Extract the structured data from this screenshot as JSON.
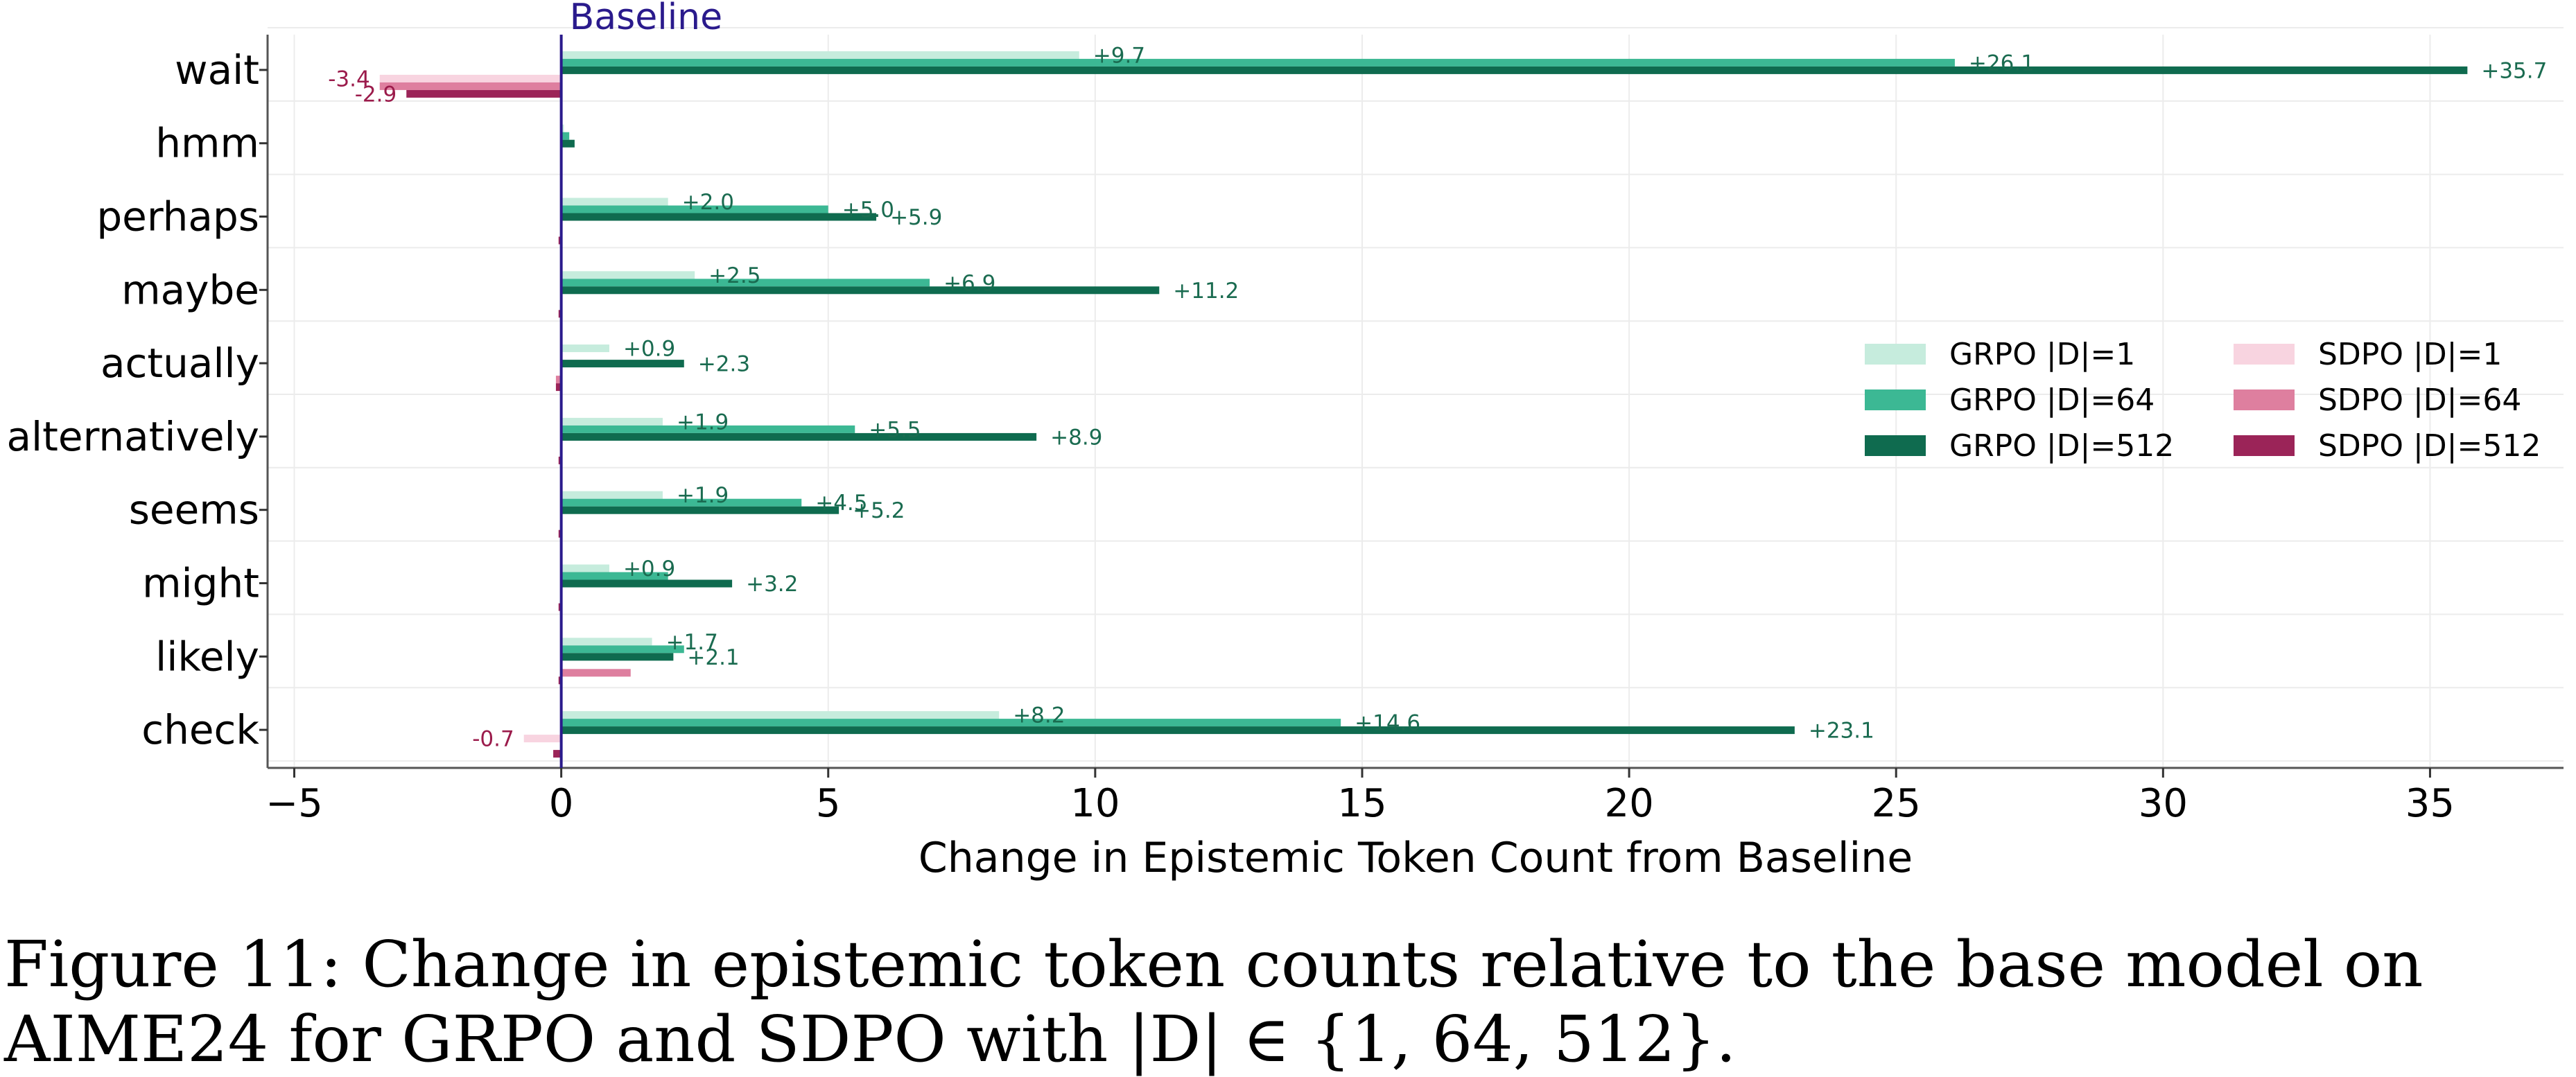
{
  "chart_data": {
    "type": "bar",
    "orientation": "horizontal",
    "categories": [
      "wait",
      "hmm",
      "perhaps",
      "maybe",
      "actually",
      "alternatively",
      "seems",
      "might",
      "likely",
      "check"
    ],
    "xlabel": "Change in Epistemic Token Count from Baseline",
    "xlim": [
      -5.5,
      37.5
    ],
    "xticks": [
      -5,
      0,
      5,
      10,
      15,
      20,
      25,
      30,
      35
    ],
    "xtick_labels": [
      "−5",
      "0",
      "5",
      "10",
      "15",
      "20",
      "25",
      "30",
      "35"
    ],
    "grid": true,
    "baseline": {
      "value": 0,
      "label": "Baseline",
      "color": "#2a1a8c"
    },
    "legend": {
      "placement": "center-right",
      "columns": 2
    },
    "series": [
      {
        "name": "GRPO |D|=1",
        "color": "#c6ecdd",
        "label_color": "#1a6b50",
        "values": [
          9.7,
          0.05,
          2.0,
          2.5,
          0.9,
          1.9,
          1.9,
          0.9,
          1.7,
          8.2
        ],
        "labels": [
          "+9.7",
          "",
          "+2.0",
          "+2.5",
          "+0.9",
          "+1.9",
          "+1.9",
          "+0.9",
          "+1.7",
          "+8.2"
        ]
      },
      {
        "name": "GRPO |D|=64",
        "color": "#3cb894",
        "label_color": "#1a6b50",
        "values": [
          26.1,
          0.15,
          5.0,
          6.9,
          0.0,
          5.5,
          4.5,
          2.0,
          2.3,
          14.6
        ],
        "labels": [
          "+26.1",
          "",
          "+5.0",
          "+6.9",
          "",
          "+5.5",
          "+4.5",
          "",
          "",
          "+14.6"
        ]
      },
      {
        "name": "GRPO |D|=512",
        "color": "#0f6b4f",
        "label_color": "#1a6b50",
        "values": [
          35.7,
          0.25,
          5.9,
          11.2,
          2.3,
          8.9,
          5.2,
          3.2,
          2.1,
          23.1
        ],
        "labels": [
          "+35.7",
          "",
          "+5.9",
          "+11.2",
          "+2.3",
          "+8.9",
          "+5.2",
          "+3.2",
          "+2.1",
          "+23.1"
        ]
      },
      {
        "name": "SDPO |D|=1",
        "color": "#f8d4e0",
        "label_color": "#9b1b4b",
        "values": [
          -3.4,
          0.0,
          0.0,
          0.0,
          0.0,
          0.0,
          0.0,
          0.0,
          0.0,
          -0.7
        ],
        "labels": [
          "-3.4",
          "",
          "",
          "",
          "",
          "",
          "",
          "",
          "",
          "-0.7"
        ]
      },
      {
        "name": "SDPO |D|=64",
        "color": "#de7f9f",
        "label_color": "#9b1b4b",
        "values": [
          -3.4,
          0.0,
          0.0,
          0.0,
          -0.1,
          0.0,
          0.0,
          0.0,
          1.3,
          0.0
        ],
        "labels": [
          "",
          "",
          "",
          "",
          "",
          "",
          "",
          "",
          "",
          ""
        ]
      },
      {
        "name": "SDPO |D|=512",
        "color": "#9b2458",
        "label_color": "#9b1b4b",
        "values": [
          -2.9,
          0.0,
          -0.05,
          -0.05,
          -0.1,
          -0.05,
          -0.05,
          -0.05,
          -0.05,
          -0.15
        ],
        "labels": [
          "-2.9",
          "",
          "",
          "",
          "",
          "",
          "",
          "",
          "",
          ""
        ]
      }
    ]
  },
  "caption": "Figure 11: Change in epistemic token counts relative to the base model on AIME24 for GRPO and SDPO with |D| ∈ {1, 64, 512}."
}
